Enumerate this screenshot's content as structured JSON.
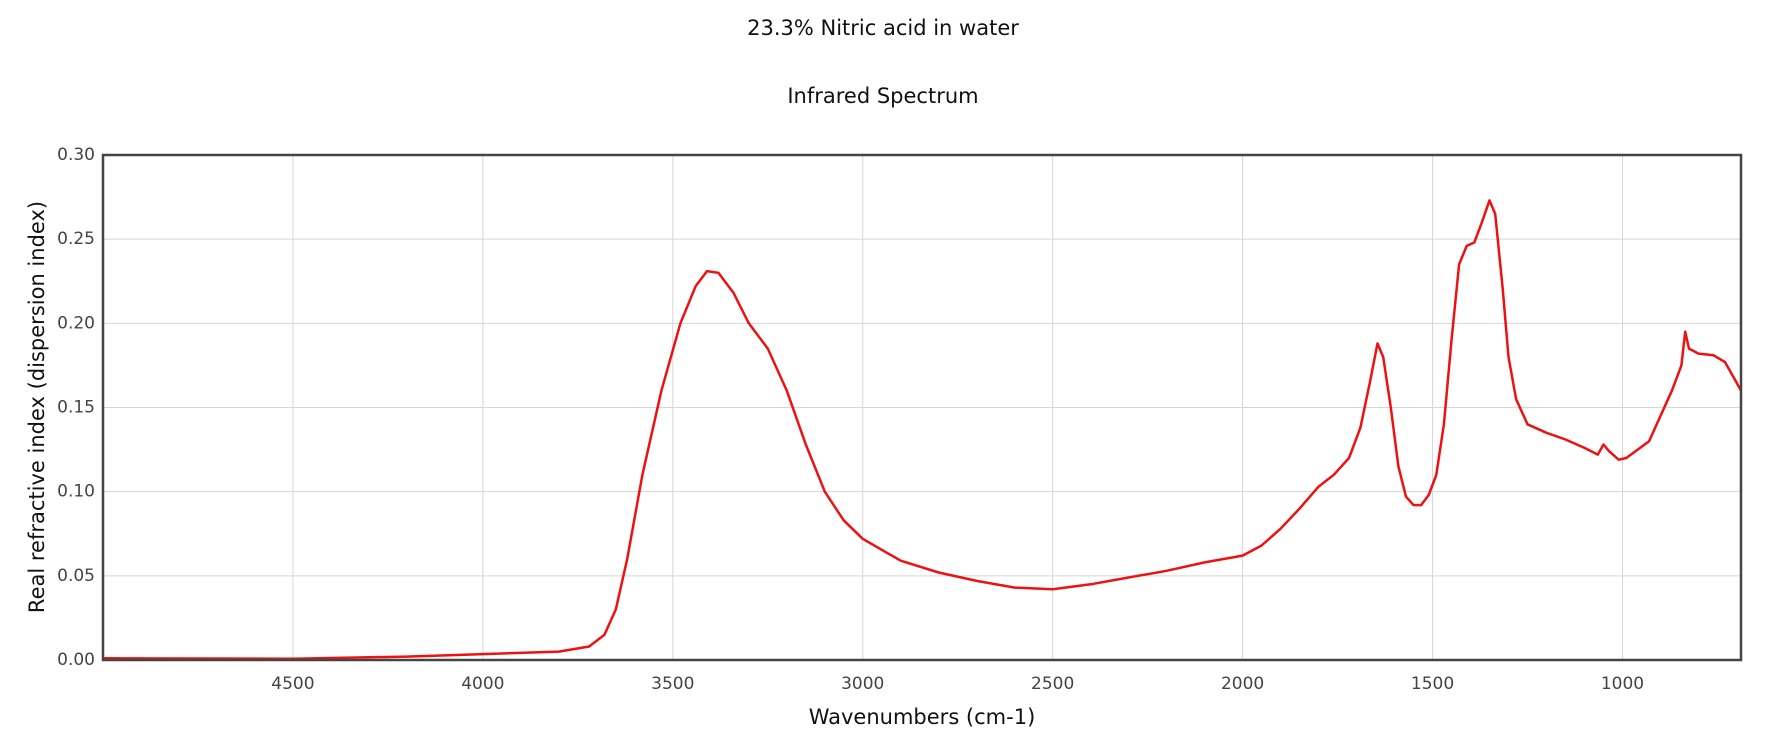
{
  "chart_data": {
    "type": "line",
    "title": "23.3% Nitric acid in water",
    "subtitle": "Infrared Spectrum",
    "xlabel": "Wavenumbers (cm-1)",
    "ylabel": "Real refractive index (dispersion index)",
    "color": "#ee1111",
    "grid": true,
    "xlim": [
      5000,
      688
    ],
    "ylim": [
      0,
      0.3
    ],
    "xticks": [
      4500,
      4000,
      3500,
      3000,
      2500,
      2000,
      1500,
      1000
    ],
    "yticks": [
      {
        "value": 0,
        "label": "0.00"
      },
      {
        "value": 0.05,
        "label": "0.05"
      },
      {
        "value": 0.1,
        "label": "0.10"
      },
      {
        "value": 0.15,
        "label": "0.15"
      },
      {
        "value": 0.2,
        "label": "0.20"
      },
      {
        "value": 0.25,
        "label": "0.25"
      },
      {
        "value": 0.3,
        "label": "0.30"
      }
    ],
    "x": [
      5000,
      4500,
      4200,
      4000,
      3800,
      3720,
      3680,
      3650,
      3620,
      3580,
      3530,
      3480,
      3440,
      3410,
      3380,
      3340,
      3300,
      3250,
      3200,
      3150,
      3100,
      3050,
      3000,
      2900,
      2800,
      2700,
      2600,
      2500,
      2400,
      2300,
      2200,
      2100,
      2000,
      1950,
      1900,
      1850,
      1800,
      1760,
      1720,
      1690,
      1665,
      1645,
      1630,
      1610,
      1590,
      1570,
      1550,
      1530,
      1510,
      1490,
      1470,
      1450,
      1430,
      1410,
      1390,
      1370,
      1350,
      1335,
      1315,
      1300,
      1280,
      1250,
      1200,
      1150,
      1100,
      1065,
      1050,
      1035,
      1010,
      990,
      960,
      930,
      900,
      870,
      845,
      835,
      825,
      800,
      760,
      730,
      700,
      688
    ],
    "values": [
      0.001,
      0.0008,
      0.002,
      0.0035,
      0.005,
      0.008,
      0.015,
      0.03,
      0.06,
      0.11,
      0.16,
      0.2,
      0.222,
      0.231,
      0.23,
      0.218,
      0.2,
      0.185,
      0.16,
      0.128,
      0.1,
      0.083,
      0.072,
      0.059,
      0.052,
      0.047,
      0.043,
      0.042,
      0.045,
      0.049,
      0.053,
      0.058,
      0.062,
      0.068,
      0.078,
      0.09,
      0.103,
      0.11,
      0.12,
      0.138,
      0.165,
      0.188,
      0.18,
      0.15,
      0.115,
      0.097,
      0.092,
      0.092,
      0.098,
      0.11,
      0.14,
      0.19,
      0.235,
      0.246,
      0.248,
      0.26,
      0.273,
      0.265,
      0.22,
      0.18,
      0.155,
      0.14,
      0.135,
      0.131,
      0.126,
      0.122,
      0.128,
      0.124,
      0.119,
      0.12,
      0.125,
      0.13,
      0.145,
      0.16,
      0.175,
      0.195,
      0.185,
      0.182,
      0.181,
      0.177,
      0.165,
      0.16
    ]
  }
}
